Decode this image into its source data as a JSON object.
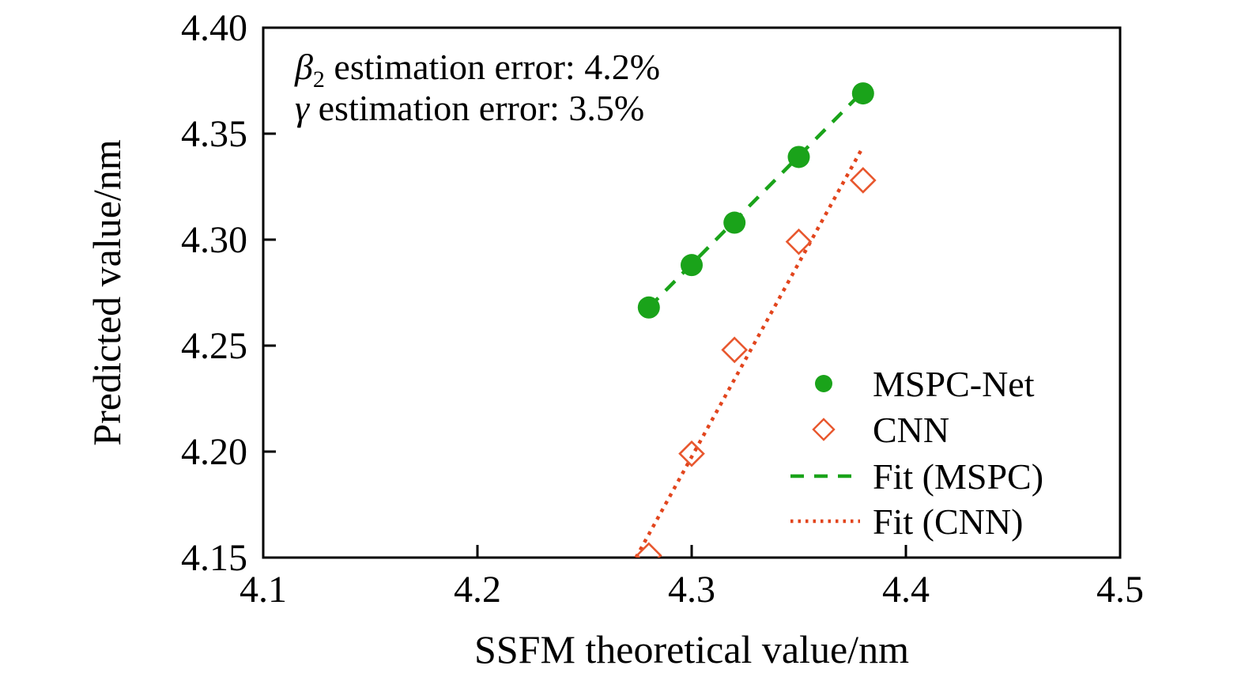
{
  "figure": {
    "background": "#ffffff",
    "text_color": "#000000"
  },
  "chart_data": {
    "type": "scatter",
    "title": "",
    "xlabel": "SSFM theoretical value/nm",
    "ylabel": "Predicted value/nm",
    "xlim": [
      4.1,
      4.5
    ],
    "ylim": [
      4.15,
      4.4
    ],
    "xticks": [
      "4.1",
      "4.2",
      "4.3",
      "4.4",
      "4.5"
    ],
    "yticks": [
      "4.15",
      "4.20",
      "4.25",
      "4.30",
      "4.35",
      "4.40"
    ],
    "grid": false,
    "annotations": [
      {
        "symbol": "β",
        "subscript": "2",
        "rest": " estimation error: 4.2%"
      },
      {
        "symbol": "γ",
        "subscript": "",
        "rest": " estimation error: 3.5%"
      }
    ],
    "series": [
      {
        "name": "MSPC-Net",
        "marker": "circle",
        "color": "#1aa31a",
        "x": [
          4.28,
          4.3,
          4.32,
          4.35,
          4.38
        ],
        "y": [
          4.268,
          4.288,
          4.308,
          4.339,
          4.369
        ]
      },
      {
        "name": "CNN",
        "marker": "diamond",
        "color": "#e8572e",
        "x": [
          4.28,
          4.3,
          4.32,
          4.35,
          4.38
        ],
        "y": [
          4.151,
          4.199,
          4.248,
          4.299,
          4.328
        ]
      }
    ],
    "fits": [
      {
        "name": "Fit (MSPC)",
        "style": "dashed",
        "color": "#1aa31a",
        "x1": 4.28,
        "y1": 4.268,
        "x2": 4.379,
        "y2": 4.369
      },
      {
        "name": "Fit (CNN)",
        "style": "dotted",
        "color": "#e2451d",
        "x1": 4.274,
        "y1": 4.15,
        "x2": 4.379,
        "y2": 4.342
      }
    ],
    "legend": {
      "position": "lower-right",
      "items": [
        {
          "label": "MSPC-Net",
          "marker": "circle",
          "color": "#1aa31a"
        },
        {
          "label": "CNN",
          "marker": "diamond",
          "color": "#e8572e"
        },
        {
          "label": "Fit (MSPC)",
          "marker": "dashed-line",
          "color": "#1aa31a"
        },
        {
          "label": "Fit (CNN)",
          "marker": "dotted-line",
          "color": "#e2451d"
        }
      ]
    }
  }
}
